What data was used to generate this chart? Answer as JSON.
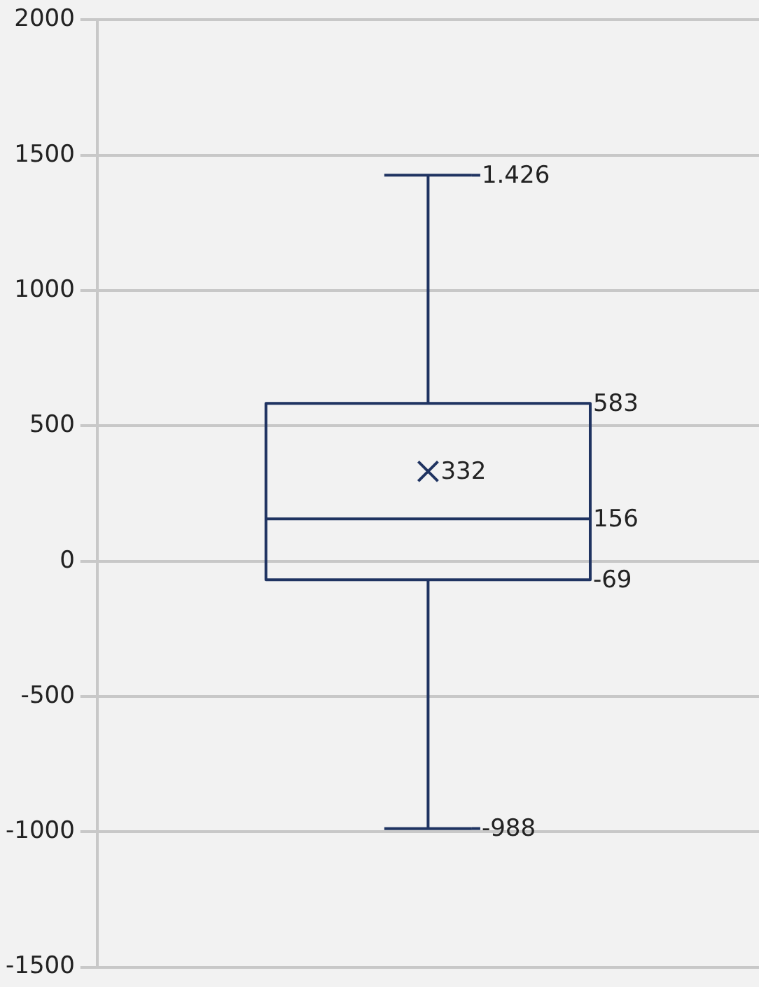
{
  "chart_data": {
    "type": "box",
    "categories": [
      null
    ],
    "boxes": [
      {
        "low": -988,
        "q1": -69,
        "median": 156,
        "q3": 583,
        "high": 1426,
        "mean": 332
      }
    ],
    "color": "#1f3361",
    "ylim": [
      -1500,
      2000
    ],
    "yticks": [
      -1500,
      -1000,
      -500,
      0,
      500,
      1000,
      1500,
      2000
    ],
    "grid": "y",
    "tick_labels": "y",
    "annotations": [
      "1.426",
      "583",
      "332",
      "156",
      "-69",
      "-988"
    ]
  }
}
